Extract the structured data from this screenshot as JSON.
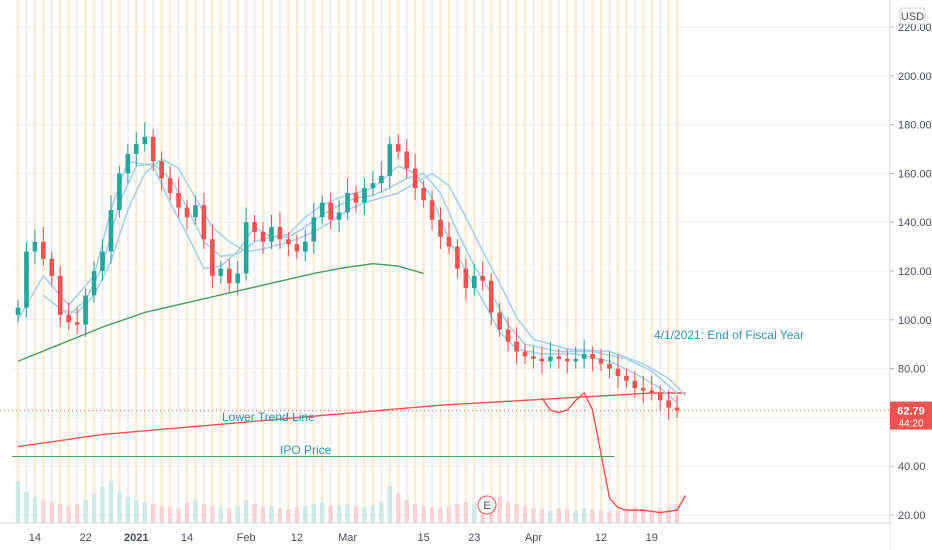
{
  "currency_label": "USD",
  "price_tag": {
    "value": "62.79",
    "countdown": "44:20"
  },
  "earnings_marker": "E",
  "annotations": {
    "fiscal_year": "4/1/2021: End of Fiscal Year",
    "lower_trend": "Lower Trend Line",
    "ipo": "IPO Price"
  },
  "colors": {
    "up": "#26a69a",
    "down": "#ef5350",
    "ma_light": "#a9d3ee",
    "ma_green": "#43a05f",
    "trend_red": "#ef5350",
    "ipo_line": "#43a05f",
    "annotation_text": "#2f8fc1",
    "price_tag_bg": "#ef5350",
    "session_orange": "#fde9cf",
    "session_grey": "#edeef1"
  },
  "chart_data": {
    "type": "candlestick",
    "symbol_currency": "USD",
    "y_ticks": [
      220,
      200,
      180,
      160,
      140,
      120,
      100,
      80,
      60,
      40,
      20
    ],
    "y_tick_labels": [
      "220.00",
      "200.00",
      "180.00",
      "160.00",
      "140.00",
      "120.00",
      "100.00",
      "80.00",
      "",
      "40.00",
      "20.00"
    ],
    "x_ticks": [
      {
        "label": "14",
        "pos": 2
      },
      {
        "label": "22",
        "pos": 8
      },
      {
        "label": "2021",
        "pos": 14
      },
      {
        "label": "14",
        "pos": 20
      },
      {
        "label": "Feb",
        "pos": 27
      },
      {
        "label": "12",
        "pos": 33
      },
      {
        "label": "Mar",
        "pos": 39
      },
      {
        "label": "15",
        "pos": 48
      },
      {
        "label": "23",
        "pos": 54
      },
      {
        "label": "Apr",
        "pos": 61
      },
      {
        "label": "12",
        "pos": 69
      },
      {
        "label": "19",
        "pos": 75
      }
    ],
    "x_range": [
      -1,
      79.5
    ],
    "y_range": [
      17,
      226
    ],
    "last_price": 62.79,
    "close": [
      105,
      128,
      132,
      125,
      118,
      102,
      99,
      98,
      110,
      120,
      128,
      145,
      160,
      168,
      172,
      175,
      165,
      158,
      152,
      146,
      142,
      147,
      133,
      118,
      121,
      115,
      119,
      140,
      136,
      132,
      138,
      133,
      131,
      128,
      132,
      142,
      148,
      141,
      144,
      152,
      148,
      154,
      156,
      159,
      172,
      169,
      162,
      154,
      149,
      141,
      134,
      130,
      121,
      113,
      118,
      116,
      103,
      96,
      91,
      87,
      85,
      84,
      83,
      85,
      84,
      83,
      84,
      86,
      84,
      82,
      80,
      77,
      75,
      72,
      71,
      70,
      67,
      64,
      62.79
    ],
    "volume": [
      40,
      30,
      25,
      22,
      20,
      18,
      16,
      18,
      22,
      28,
      35,
      40,
      30,
      25,
      22,
      20,
      18,
      16,
      15,
      14,
      20,
      22,
      18,
      16,
      15,
      14,
      16,
      22,
      18,
      15,
      16,
      14,
      13,
      15,
      16,
      18,
      20,
      17,
      16,
      18,
      16,
      15,
      17,
      20,
      35,
      28,
      22,
      18,
      16,
      15,
      14,
      16,
      18,
      20,
      18,
      16,
      22,
      25,
      20,
      18,
      16,
      14,
      13,
      12,
      14,
      13,
      12,
      14,
      13,
      12,
      11,
      12,
      14,
      15,
      13,
      12,
      14,
      15,
      18
    ],
    "ma_short": [
      {
        "x": 0,
        "y": 100
      },
      {
        "x": 3,
        "y": 118
      },
      {
        "x": 6,
        "y": 106
      },
      {
        "x": 9,
        "y": 118
      },
      {
        "x": 11,
        "y": 145
      },
      {
        "x": 13,
        "y": 165
      },
      {
        "x": 16,
        "y": 163
      },
      {
        "x": 18,
        "y": 148
      },
      {
        "x": 20,
        "y": 135
      },
      {
        "x": 22,
        "y": 121
      },
      {
        "x": 24,
        "y": 122
      },
      {
        "x": 26,
        "y": 128
      },
      {
        "x": 28,
        "y": 138
      },
      {
        "x": 30,
        "y": 134
      },
      {
        "x": 32,
        "y": 135
      },
      {
        "x": 34,
        "y": 142
      },
      {
        "x": 36,
        "y": 147
      },
      {
        "x": 38,
        "y": 150
      },
      {
        "x": 40,
        "y": 152
      },
      {
        "x": 42,
        "y": 154
      },
      {
        "x": 44,
        "y": 160
      },
      {
        "x": 45,
        "y": 163
      },
      {
        "x": 47,
        "y": 160
      },
      {
        "x": 49,
        "y": 150
      },
      {
        "x": 51,
        "y": 133
      },
      {
        "x": 53,
        "y": 120
      },
      {
        "x": 55,
        "y": 108
      },
      {
        "x": 57,
        "y": 95
      },
      {
        "x": 59,
        "y": 88
      },
      {
        "x": 62,
        "y": 86
      },
      {
        "x": 66,
        "y": 86
      },
      {
        "x": 70,
        "y": 83
      },
      {
        "x": 73,
        "y": 78
      },
      {
        "x": 76,
        "y": 72
      },
      {
        "x": 78,
        "y": 66
      }
    ],
    "ma_mid": [
      {
        "x": 3,
        "y": 110
      },
      {
        "x": 6,
        "y": 102
      },
      {
        "x": 8,
        "y": 108
      },
      {
        "x": 10,
        "y": 122
      },
      {
        "x": 12,
        "y": 148
      },
      {
        "x": 14,
        "y": 163
      },
      {
        "x": 16,
        "y": 164
      },
      {
        "x": 18,
        "y": 158
      },
      {
        "x": 20,
        "y": 146
      },
      {
        "x": 22,
        "y": 132
      },
      {
        "x": 24,
        "y": 126
      },
      {
        "x": 26,
        "y": 127
      },
      {
        "x": 28,
        "y": 132
      },
      {
        "x": 30,
        "y": 134
      },
      {
        "x": 32,
        "y": 134
      },
      {
        "x": 34,
        "y": 138
      },
      {
        "x": 36,
        "y": 143
      },
      {
        "x": 38,
        "y": 147
      },
      {
        "x": 40,
        "y": 150
      },
      {
        "x": 42,
        "y": 151
      },
      {
        "x": 44,
        "y": 154
      },
      {
        "x": 46,
        "y": 158
      },
      {
        "x": 48,
        "y": 160
      },
      {
        "x": 50,
        "y": 152
      },
      {
        "x": 52,
        "y": 136
      },
      {
        "x": 54,
        "y": 122
      },
      {
        "x": 56,
        "y": 111
      },
      {
        "x": 58,
        "y": 98
      },
      {
        "x": 60,
        "y": 90
      },
      {
        "x": 64,
        "y": 87
      },
      {
        "x": 68,
        "y": 87
      },
      {
        "x": 72,
        "y": 84
      },
      {
        "x": 75,
        "y": 79
      },
      {
        "x": 78,
        "y": 70
      }
    ],
    "ma_long": [
      {
        "x": 5,
        "y": 104
      },
      {
        "x": 7,
        "y": 103
      },
      {
        "x": 9,
        "y": 110
      },
      {
        "x": 11,
        "y": 124
      },
      {
        "x": 13,
        "y": 145
      },
      {
        "x": 15,
        "y": 160
      },
      {
        "x": 17,
        "y": 166
      },
      {
        "x": 19,
        "y": 162
      },
      {
        "x": 21,
        "y": 150
      },
      {
        "x": 23,
        "y": 138
      },
      {
        "x": 25,
        "y": 132
      },
      {
        "x": 27,
        "y": 128
      },
      {
        "x": 29,
        "y": 129
      },
      {
        "x": 31,
        "y": 131
      },
      {
        "x": 33,
        "y": 133
      },
      {
        "x": 35,
        "y": 136
      },
      {
        "x": 37,
        "y": 140
      },
      {
        "x": 39,
        "y": 145
      },
      {
        "x": 41,
        "y": 148
      },
      {
        "x": 43,
        "y": 150
      },
      {
        "x": 45,
        "y": 152
      },
      {
        "x": 47,
        "y": 156
      },
      {
        "x": 49,
        "y": 160
      },
      {
        "x": 51,
        "y": 155
      },
      {
        "x": 53,
        "y": 142
      },
      {
        "x": 55,
        "y": 128
      },
      {
        "x": 57,
        "y": 115
      },
      {
        "x": 59,
        "y": 101
      },
      {
        "x": 61,
        "y": 92
      },
      {
        "x": 65,
        "y": 88
      },
      {
        "x": 70,
        "y": 87
      },
      {
        "x": 74,
        "y": 82
      },
      {
        "x": 77,
        "y": 76
      },
      {
        "x": 79,
        "y": 69
      }
    ],
    "ma_green": [
      {
        "x": 0,
        "y": 83
      },
      {
        "x": 5,
        "y": 90
      },
      {
        "x": 10,
        "y": 97
      },
      {
        "x": 15,
        "y": 103
      },
      {
        "x": 20,
        "y": 107
      },
      {
        "x": 25,
        "y": 111
      },
      {
        "x": 30,
        "y": 115
      },
      {
        "x": 35,
        "y": 119
      },
      {
        "x": 38,
        "y": 121
      },
      {
        "x": 40,
        "y": 122
      },
      {
        "x": 42,
        "y": 123
      },
      {
        "x": 45,
        "y": 122
      },
      {
        "x": 48,
        "y": 119
      }
    ],
    "trend_line": [
      {
        "x": 0,
        "y": 48
      },
      {
        "x": 10,
        "y": 53
      },
      {
        "x": 20,
        "y": 56
      },
      {
        "x": 30,
        "y": 59
      },
      {
        "x": 40,
        "y": 62
      },
      {
        "x": 50,
        "y": 65
      },
      {
        "x": 60,
        "y": 67
      },
      {
        "x": 70,
        "y": 69
      },
      {
        "x": 75,
        "y": 70
      },
      {
        "x": 79,
        "y": 70
      }
    ],
    "forecast_path": [
      {
        "x": 62,
        "y": 68
      },
      {
        "x": 63,
        "y": 63
      },
      {
        "x": 64,
        "y": 62
      },
      {
        "x": 65,
        "y": 63
      },
      {
        "x": 66,
        "y": 67
      },
      {
        "x": 67,
        "y": 70
      },
      {
        "x": 68,
        "y": 63
      },
      {
        "x": 69,
        "y": 45
      },
      {
        "x": 70,
        "y": 27
      },
      {
        "x": 71,
        "y": 23
      },
      {
        "x": 72,
        "y": 22
      },
      {
        "x": 74,
        "y": 22
      },
      {
        "x": 76,
        "y": 21
      },
      {
        "x": 78,
        "y": 22
      },
      {
        "x": 79,
        "y": 28
      }
    ],
    "ipo_price": 44
  }
}
